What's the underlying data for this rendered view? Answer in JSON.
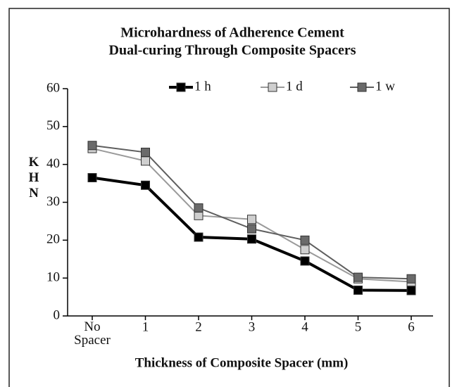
{
  "chart_data": {
    "type": "line",
    "title": [
      "Microhardness of Adherence Cement",
      "Dual-curing Through Composite Spacers"
    ],
    "x_label": "Thickness of Composite Spacer (mm)",
    "y_label": "KHN",
    "categories": [
      "No Spacer",
      "1",
      "2",
      "3",
      "4",
      "5",
      "6"
    ],
    "series": [
      {
        "name": "1 h",
        "color": "#000000",
        "marker": "#000000",
        "values": [
          36.5,
          34.5,
          20.8,
          20.3,
          14.5,
          6.8,
          6.7
        ]
      },
      {
        "name": "1 d",
        "color": "#9a9a9a",
        "marker": "#cfcfcf",
        "values": [
          44.2,
          40.9,
          26.5,
          25.5,
          17.5,
          9.8,
          9.0
        ]
      },
      {
        "name": "1 w",
        "color": "#5e5e5e",
        "marker": "#6a6a6a",
        "values": [
          45.0,
          43.2,
          28.5,
          23.0,
          20.0,
          10.2,
          9.8
        ]
      }
    ],
    "ylim": [
      0,
      60
    ],
    "yticks": [
      0,
      10,
      20,
      30,
      40,
      50,
      60
    ],
    "legend": "top"
  }
}
